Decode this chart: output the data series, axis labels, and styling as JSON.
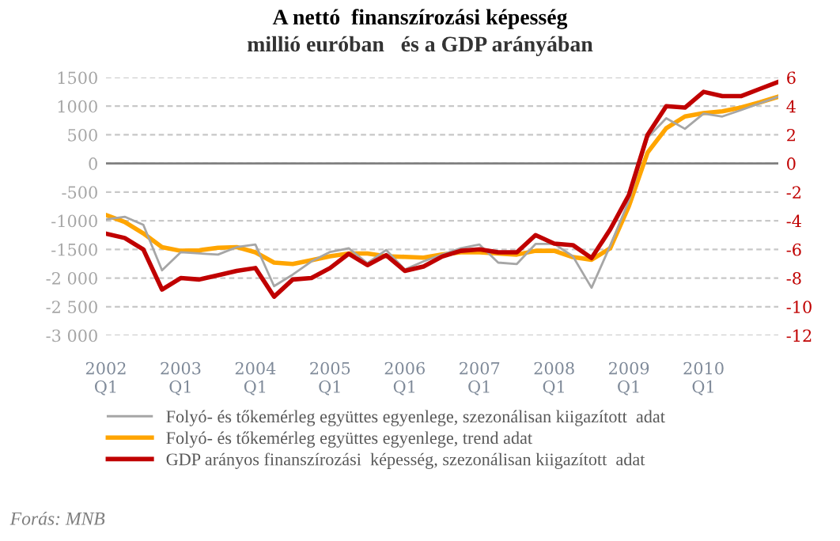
{
  "chart_data": {
    "type": "line",
    "title": "A nettó  finanszírozási képesség",
    "subtitle": "millió euróban   és a GDP arányában",
    "categories": [
      "2002\nQ1",
      null,
      null,
      null,
      "2003\nQ1",
      null,
      null,
      null,
      "2004\nQ1",
      null,
      null,
      null,
      "2005\nQ1",
      null,
      null,
      null,
      "2006\nQ1",
      null,
      null,
      null,
      "2007\nQ1",
      null,
      null,
      null,
      "2008\nQ1",
      null,
      null,
      null,
      "2009\nQ1",
      null,
      null,
      null,
      "2010\nQ1",
      null,
      null,
      null,
      null
    ],
    "series": [
      {
        "name": "Folyó- és tőkemérleg együttes egyenlege, szezonálisan kiigazított  adat",
        "color": "#a6a6a6",
        "values": [
          -975,
          -930,
          -1070,
          -1865,
          -1550,
          -1570,
          -1590,
          -1460,
          -1415,
          -2140,
          -1940,
          -1710,
          -1545,
          -1480,
          -1740,
          -1510,
          -1850,
          -1710,
          -1590,
          -1480,
          -1415,
          -1730,
          -1755,
          -1405,
          -1405,
          -1620,
          -2170,
          -1435,
          -650,
          450,
          790,
          605,
          870,
          820,
          930,
          1050,
          1165
        ]
      },
      {
        "name": "Folyó- és tőkemérleg együttes egyenlege, trend adat",
        "color": "#ffa500",
        "values": [
          -900,
          -1020,
          -1220,
          -1460,
          -1525,
          -1515,
          -1470,
          -1460,
          -1550,
          -1730,
          -1755,
          -1690,
          -1620,
          -1570,
          -1570,
          -1620,
          -1630,
          -1645,
          -1590,
          -1550,
          -1550,
          -1570,
          -1590,
          -1525,
          -1525,
          -1635,
          -1680,
          -1480,
          -745,
          190,
          615,
          820,
          880,
          910,
          975,
          1065,
          1165
        ]
      },
      {
        "name": "GDP arányos finanszírozási  képesség, szezonálisan kiigazított  adat",
        "color": "#c00000",
        "axis": "y2",
        "values": [
          -4.9,
          -5.2,
          -6.0,
          -8.8,
          -8.0,
          -8.1,
          -7.8,
          -7.5,
          -7.3,
          -9.3,
          -8.1,
          -8.0,
          -7.3,
          -6.3,
          -7.1,
          -6.4,
          -7.5,
          -7.2,
          -6.5,
          -6.1,
          -6.0,
          -6.2,
          -6.2,
          -5.0,
          -5.6,
          -5.7,
          -6.6,
          -4.6,
          -2.2,
          2.0,
          4.0,
          3.9,
          5.0,
          4.7,
          4.7,
          5.2,
          5.7
        ]
      }
    ],
    "ylim": [
      -3000,
      1500
    ],
    "yticks": [
      {
        "value": -3000,
        "label": "-3 000"
      },
      {
        "value": -2500,
        "label": "-2 500"
      },
      {
        "value": -2000,
        "label": "-2 000"
      },
      -1500,
      -1000,
      -500,
      0,
      500,
      1000,
      1500
    ],
    "y2lim": [
      -12,
      6
    ],
    "y2ticks": [
      -12,
      -10,
      -8,
      -6,
      -4,
      -2,
      0,
      2,
      4,
      6
    ],
    "grid": "y",
    "legend": "bottom",
    "line_style": "solid",
    "marker": "none",
    "annotations": [
      "Forás: MNB"
    ]
  }
}
